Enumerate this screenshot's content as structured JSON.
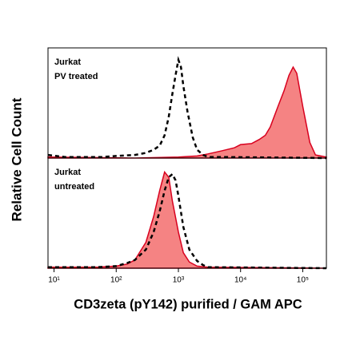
{
  "chart_data": {
    "type": "density",
    "x_label": "CD3zeta (pY142) purified / GAM APC",
    "y_label": "Relative Cell Count",
    "xscale": "log",
    "xlim": [
      8,
      240000
    ],
    "xticks": [
      {
        "value": 10,
        "label": "10¹"
      },
      {
        "value": 100,
        "label": "10²"
      },
      {
        "value": 1000,
        "label": "10³"
      },
      {
        "value": 10000,
        "label": "10⁴"
      },
      {
        "value": 100000,
        "label": "10⁵"
      }
    ],
    "ylim": [
      0,
      105
    ],
    "panels": [
      {
        "annotation": [
          "Jurkat",
          "PV treated"
        ],
        "series": [
          {
            "style": "filled",
            "color": "#d8001e",
            "fill": "#f58383",
            "x": [
              8,
              200,
              1000,
              2000,
              3000,
              5000,
              8000,
              10000,
              15000,
              20000,
              25000,
              30000,
              40000,
              50000,
              60000,
              70000,
              80000,
              100000,
              130000,
              160000,
              240000
            ],
            "values": [
              1,
              0,
              1,
              2,
              4,
              7,
              10,
              13,
              14,
              18,
              22,
              30,
              50,
              65,
              80,
              88,
              82,
              50,
              15,
              3,
              1
            ]
          },
          {
            "style": "dashed",
            "color": "#000000",
            "x": [
              8,
              15,
              30,
              60,
              100,
              200,
              300,
              400,
              500,
              600,
              700,
              800,
              900,
              1000,
              1100,
              1200,
              1400,
              1700,
              2000,
              2500,
              3000,
              5000,
              240000
            ],
            "values": [
              3,
              1,
              1,
              1,
              2,
              3,
              5,
              8,
              12,
              22,
              40,
              62,
              80,
              95,
              88,
              70,
              45,
              20,
              8,
              3,
              1,
              1,
              0
            ]
          }
        ]
      },
      {
        "annotation": [
          "Jurkat",
          "untreated"
        ],
        "series": [
          {
            "style": "filled",
            "color": "#d8001e",
            "fill": "#f58383",
            "x": [
              8,
              50,
              100,
              150,
              200,
              300,
              400,
              500,
              600,
              700,
              800,
              1000,
              1200,
              1500,
              2000,
              3000,
              240000
            ],
            "values": [
              1,
              1,
              2,
              4,
              8,
              25,
              50,
              75,
              93,
              88,
              65,
              35,
              15,
              6,
              2,
              1,
              0
            ]
          },
          {
            "style": "dashed",
            "color": "#000000",
            "x": [
              8,
              50,
              100,
              150,
              200,
              300,
              400,
              500,
              600,
              700,
              800,
              900,
              1000,
              1200,
              1500,
              2000,
              2500,
              3000,
              240000
            ],
            "values": [
              1,
              1,
              2,
              5,
              8,
              18,
              35,
              55,
              75,
              88,
              91,
              85,
              70,
              40,
              18,
              7,
              3,
              1,
              0
            ]
          }
        ]
      }
    ]
  }
}
